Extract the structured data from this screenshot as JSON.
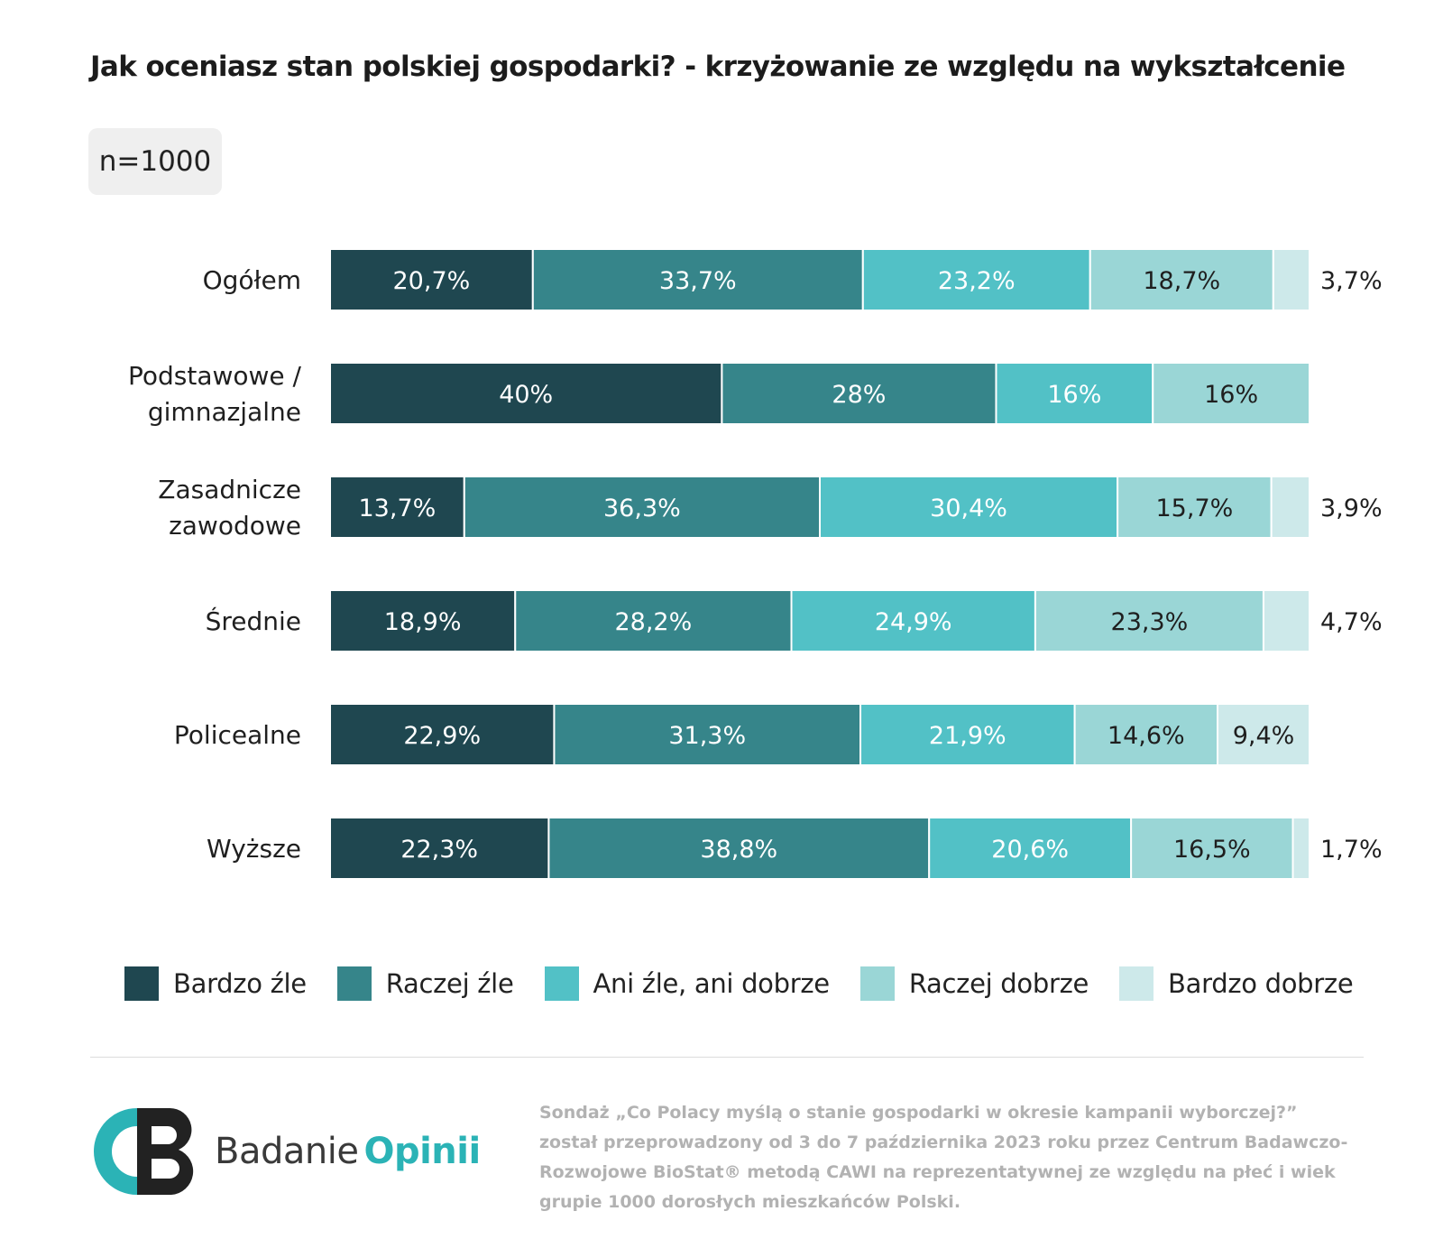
{
  "title": "Jak oceniasz stan polskiej gospodarki? - krzyżowanie ze względu na wykształcenie",
  "sample": "n=1000",
  "colors": [
    "#1f4750",
    "#36858a",
    "#52c1c6",
    "#9ad6d6",
    "#cde9ea"
  ],
  "label_colors": [
    "#ffffff",
    "#ffffff",
    "#ffffff",
    "#1f1f1f",
    "#1f1f1f"
  ],
  "chart_data": {
    "type": "bar",
    "orientation": "horizontal",
    "stacked": true,
    "title": "Jak oceniasz stan polskiej gospodarki? - krzyżowanie ze względu na wykształcenie",
    "categories": [
      "Ogółem",
      "Podstawowe / gimnazjalne",
      "Zasadnicze zawodowe",
      "Średnie",
      "Policealne",
      "Wyższe"
    ],
    "category_lines": [
      [
        "Ogółem"
      ],
      [
        "Podstawowe /",
        "gimnazjalne"
      ],
      [
        "Zasadnicze",
        "zawodowe"
      ],
      [
        "Średnie"
      ],
      [
        "Policealne"
      ],
      [
        "Wyższe"
      ]
    ],
    "series": [
      {
        "name": "Bardzo źle",
        "values": [
          20.7,
          40,
          13.7,
          18.9,
          22.9,
          22.3
        ],
        "labels": [
          "20,7%",
          "40%",
          "13,7%",
          "18,9%",
          "22,9%",
          "22,3%"
        ]
      },
      {
        "name": "Raczej źle",
        "values": [
          33.7,
          28,
          36.3,
          28.2,
          31.3,
          38.8
        ],
        "labels": [
          "33,7%",
          "28%",
          "36,3%",
          "28,2%",
          "31,3%",
          "38,8%"
        ]
      },
      {
        "name": "Ani źle, ani dobrze",
        "values": [
          23.2,
          16,
          30.4,
          24.9,
          21.9,
          20.6
        ],
        "labels": [
          "23,2%",
          "16%",
          "30,4%",
          "24,9%",
          "21,9%",
          "20,6%"
        ]
      },
      {
        "name": "Raczej dobrze",
        "values": [
          18.7,
          16,
          15.7,
          23.3,
          14.6,
          16.5
        ],
        "labels": [
          "18,7%",
          "16%",
          "15,7%",
          "23,3%",
          "14,6%",
          "16,5%"
        ]
      },
      {
        "name": "Bardzo dobrze",
        "values": [
          3.7,
          0,
          3.9,
          4.7,
          9.4,
          1.7
        ],
        "labels": [
          "3,7%",
          "",
          "3,9%",
          "4,7%",
          "9,4%",
          "1,7%"
        ]
      }
    ],
    "legend_position": "bottom",
    "grid": false
  },
  "legend": [
    "Bardzo źle",
    "Raczej źle",
    "Ani źle, ani dobrze",
    "Raczej dobrze",
    "Bardzo dobrze"
  ],
  "logo": {
    "word1": "Badanie",
    "word2": "Opinii"
  },
  "footnote": "Sondaż „Co Polacy myślą o stanie gospodarki w okresie kampanii wyborczej?” został przeprowadzony od 3 do 7 października 2023 roku przez Centrum Badawczo-Rozwojowe BioStat® metodą CAWI na reprezentatywnej ze względu na płeć i wiek grupie 1000 dorosłych mieszkańców Polski."
}
